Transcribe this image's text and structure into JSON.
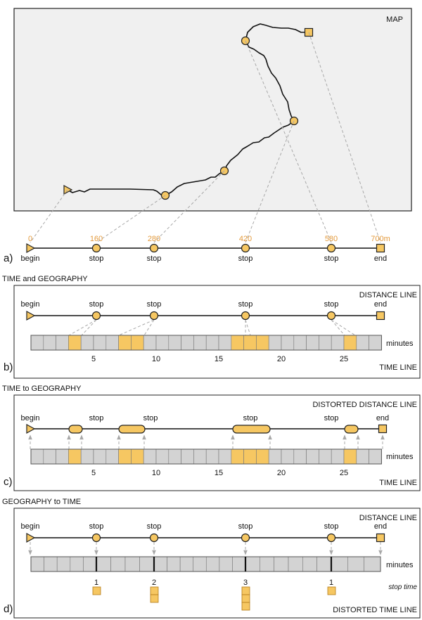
{
  "map": {
    "label": "MAP"
  },
  "panels": [
    {
      "letter": "a)"
    },
    {
      "letter": "b)",
      "section_title": "TIME and GEOGRAPHY",
      "top_right": "DISTANCE LINE",
      "bottom_right": "TIME LINE",
      "unit": "minutes"
    },
    {
      "letter": "c)",
      "section_title": "TIME to GEOGRAPHY",
      "top_right": "DISTORTED DISTANCE LINE",
      "bottom_right": "TIME LINE",
      "unit": "minutes"
    },
    {
      "letter": "d)",
      "section_title": "GEOGRAPHY to TIME",
      "top_right": "DISTANCE LINE",
      "bottom_right": "DISTORTED TIME LINE",
      "unit": "minutes",
      "stop_time_label": "stop time"
    }
  ],
  "distance_labels": [
    "0",
    "160",
    "280",
    "420",
    "580",
    "700m"
  ],
  "point_labels": [
    "begin",
    "stop",
    "stop",
    "stop",
    "stop",
    "end"
  ],
  "time_ticks": [
    "5",
    "10",
    "15",
    "20",
    "25"
  ],
  "stop_durations": [
    "1",
    "2",
    "3",
    "1"
  ],
  "colors": {
    "accent": "#f6c762",
    "accent_stroke": "#222222",
    "distance_text": "#e39a3c",
    "map_bg": "#f0f0f0",
    "cell": "#d3d3d3",
    "guide": "#a8a8a8"
  }
}
